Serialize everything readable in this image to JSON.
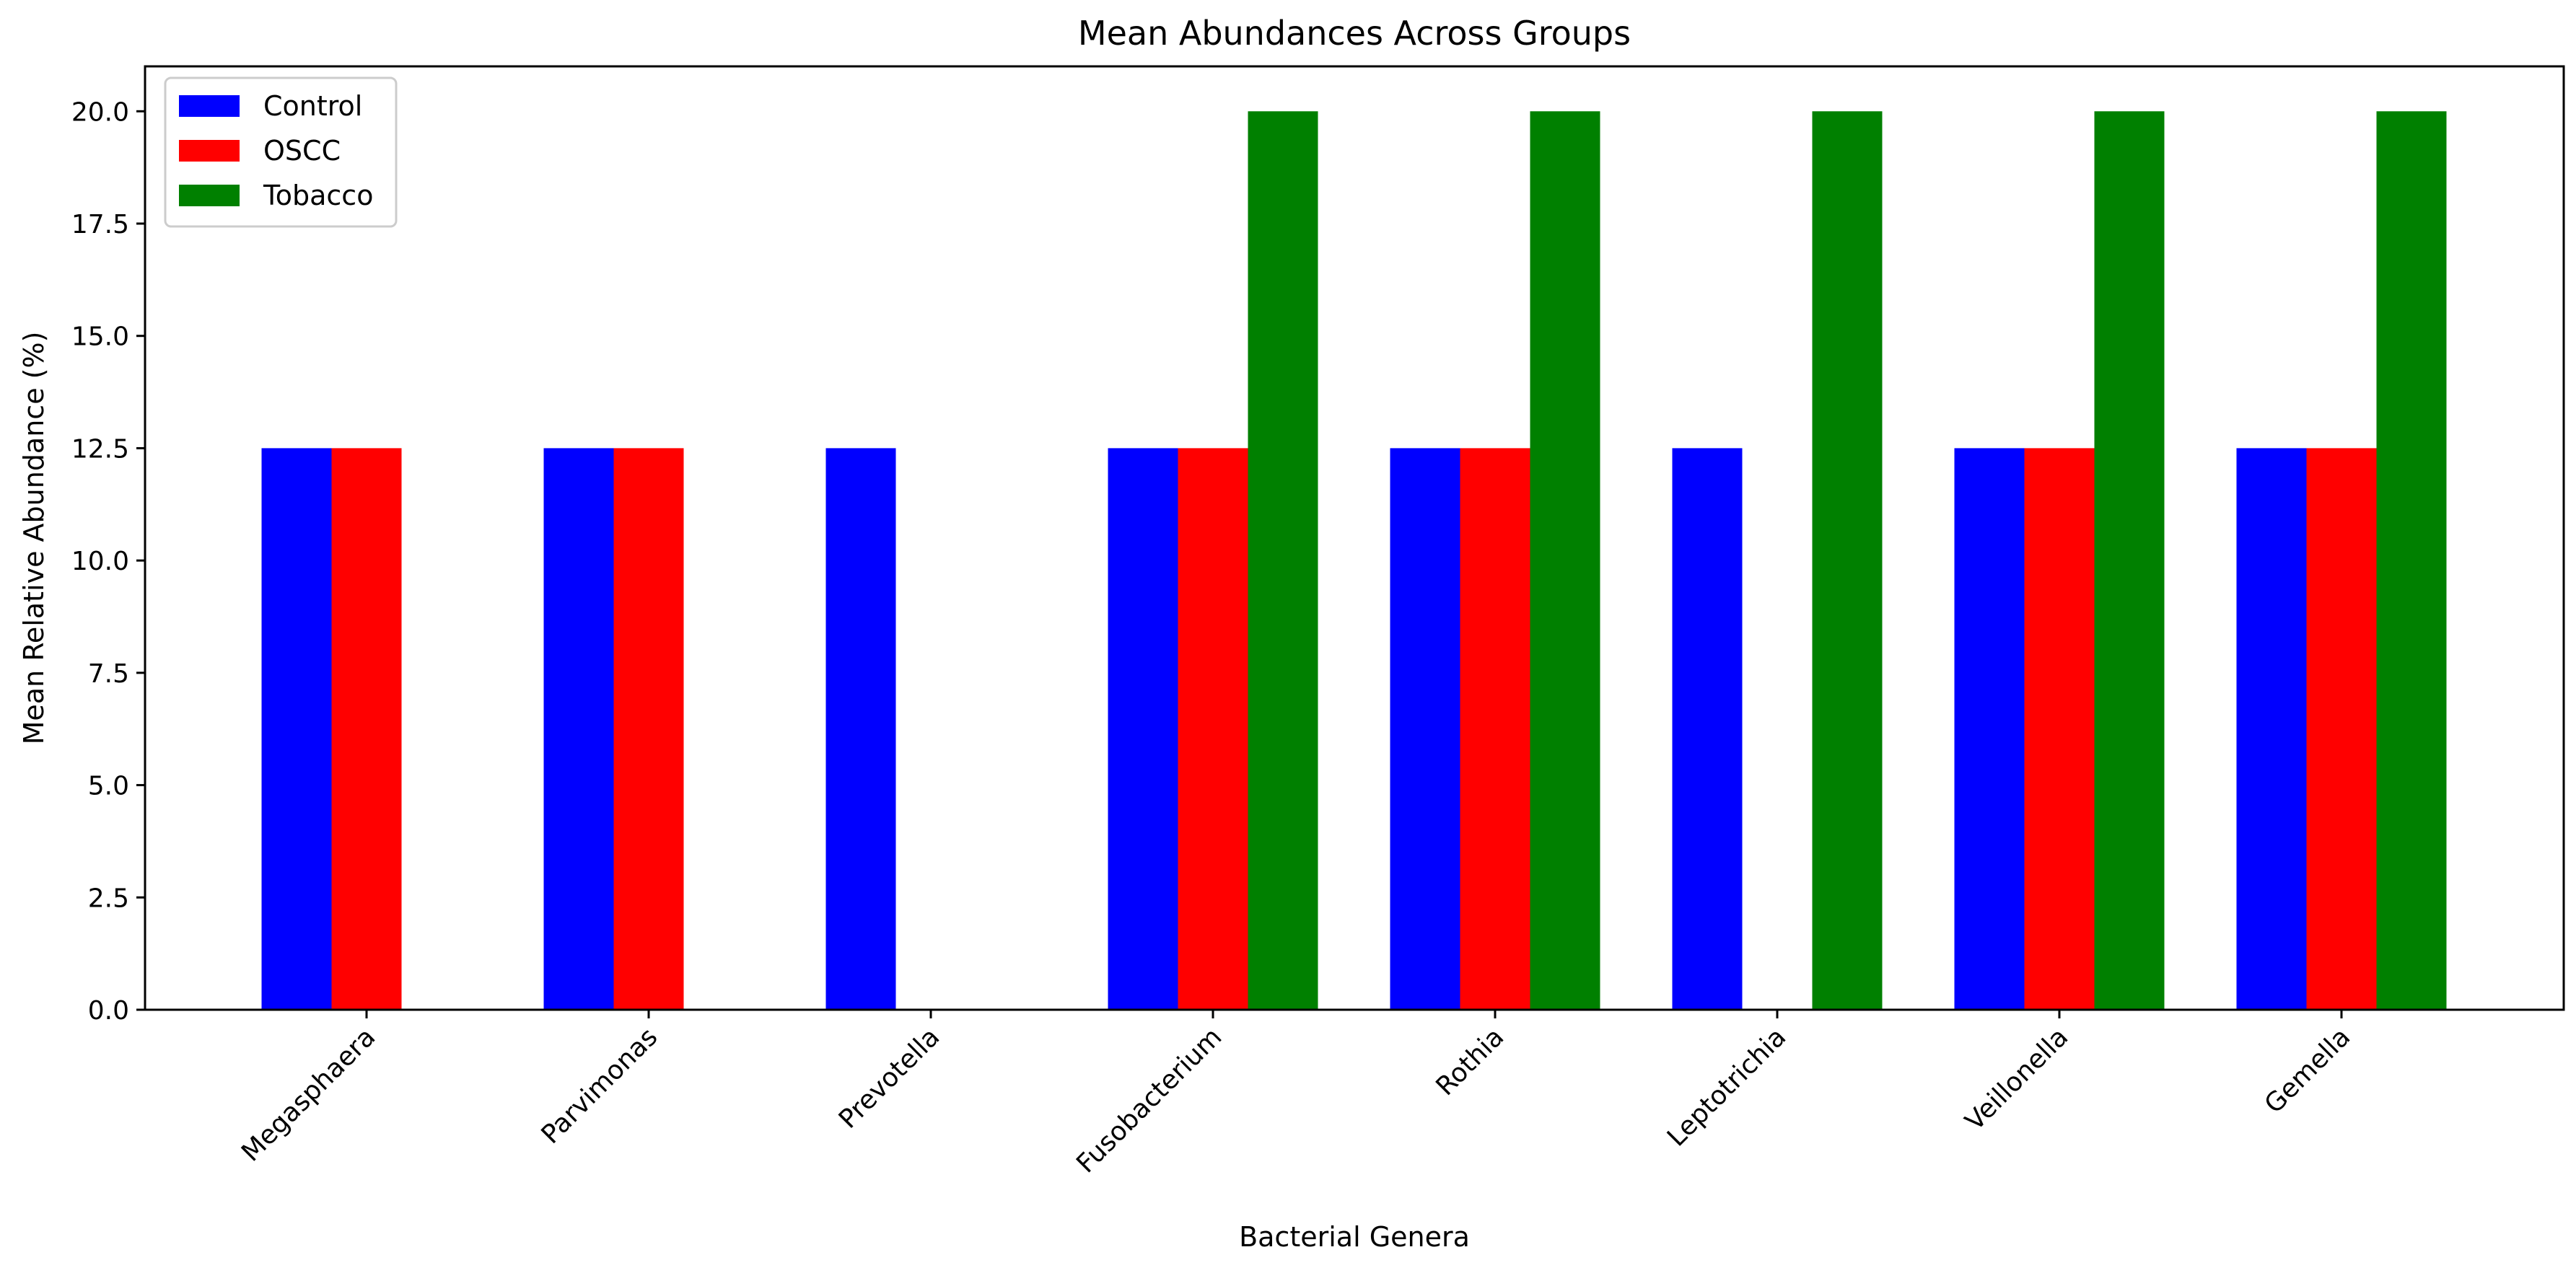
{
  "chart_data": {
    "type": "bar",
    "title": "Mean Abundances Across Groups",
    "xlabel": "Bacterial Genera",
    "ylabel": "Mean Relative Abundance (%)",
    "categories": [
      "Megasphaera",
      "Parvimonas",
      "Prevotella",
      "Fusobacterium",
      "Rothia",
      "Leptotrichia",
      "Veillonella",
      "Gemella"
    ],
    "series": [
      {
        "name": "Control",
        "color": "#0000ff",
        "values": [
          12.5,
          12.5,
          12.5,
          12.5,
          12.5,
          12.5,
          12.5,
          12.5
        ]
      },
      {
        "name": "OSCC",
        "color": "#ff0000",
        "values": [
          12.5,
          12.5,
          0,
          12.5,
          12.5,
          0,
          12.5,
          12.5
        ]
      },
      {
        "name": "Tobacco",
        "color": "#008000",
        "values": [
          0,
          0,
          0,
          20,
          20,
          20,
          20,
          20
        ]
      }
    ],
    "ylim": [
      0,
      21
    ],
    "yticks": [
      0.0,
      2.5,
      5.0,
      7.5,
      10.0,
      12.5,
      15.0,
      17.5,
      20.0
    ],
    "ytick_labels": [
      "0.0",
      "2.5",
      "5.0",
      "7.5",
      "10.0",
      "12.5",
      "15.0",
      "17.5",
      "20.0"
    ],
    "grid": false,
    "legend_position": "top-left"
  }
}
